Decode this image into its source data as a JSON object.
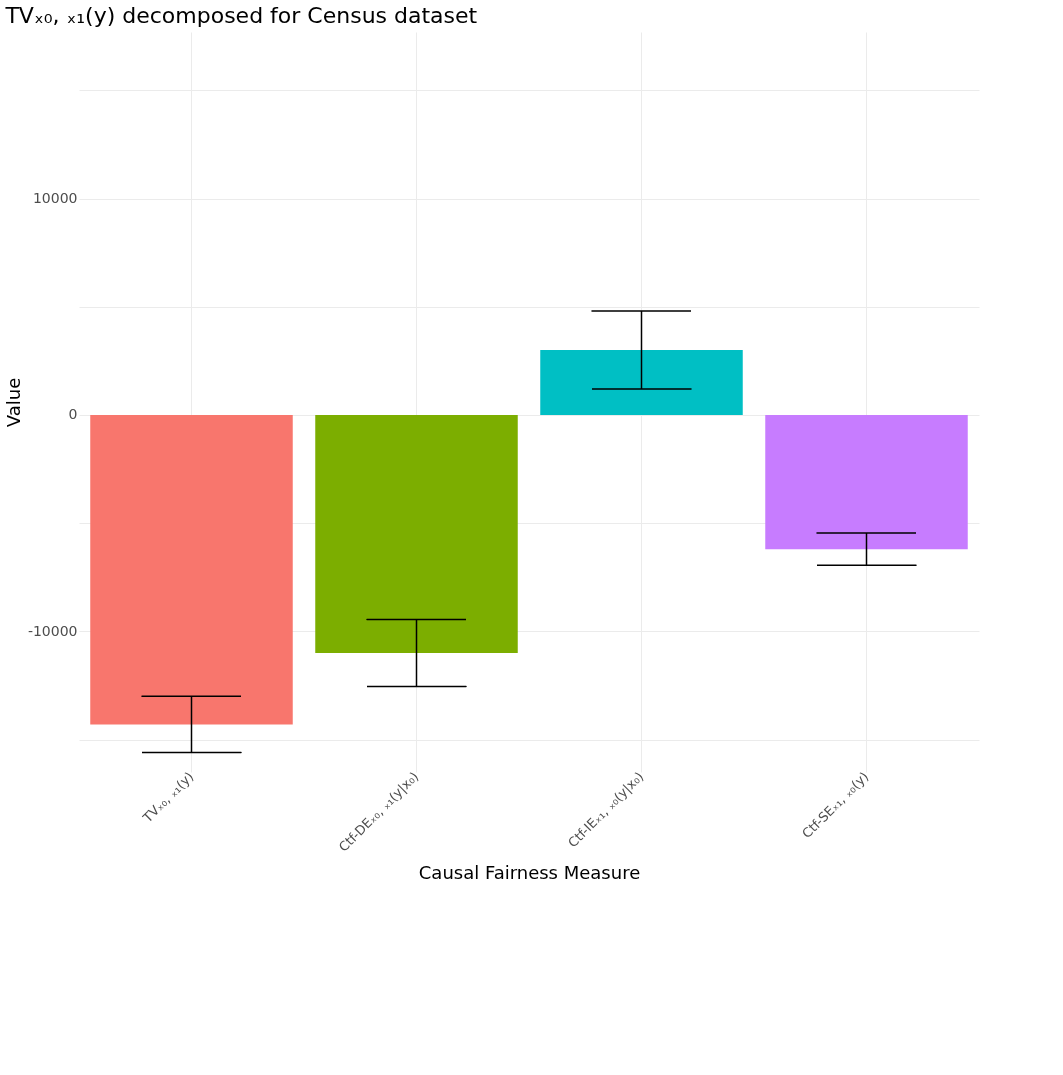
{
  "chart_data": {
    "type": "bar",
    "title": "TVₓ₀, ₓ₁(y) decomposed for Census dataset",
    "xlabel": "Causal Fairness Measure",
    "ylabel": "Value",
    "categories": [
      "TVₓ₀, ₓ₁(y)",
      "Ctf-DEₓ₀, ₓ₁(y|x₀)",
      "Ctf-IEₓ₁, ₓ₀(y|x₀)",
      "Ctf-SEₓ₁, ₓ₀(y)"
    ],
    "values": [
      -14300,
      -11000,
      3000,
      -6200
    ],
    "colors": [
      "#f8766d",
      "#7cae00",
      "#00bfc4",
      "#c77cff"
    ],
    "errors": [
      1300,
      1550,
      1800,
      750
    ],
    "ylim": [
      -16500,
      17700
    ],
    "yticks": [
      {
        "value": -15000,
        "label": null
      },
      -10000,
      {
        "value": -5000,
        "label": null
      },
      0,
      {
        "value": 5000,
        "label": null
      },
      10000,
      {
        "value": 15000,
        "label": null
      }
    ],
    "grid": true
  }
}
